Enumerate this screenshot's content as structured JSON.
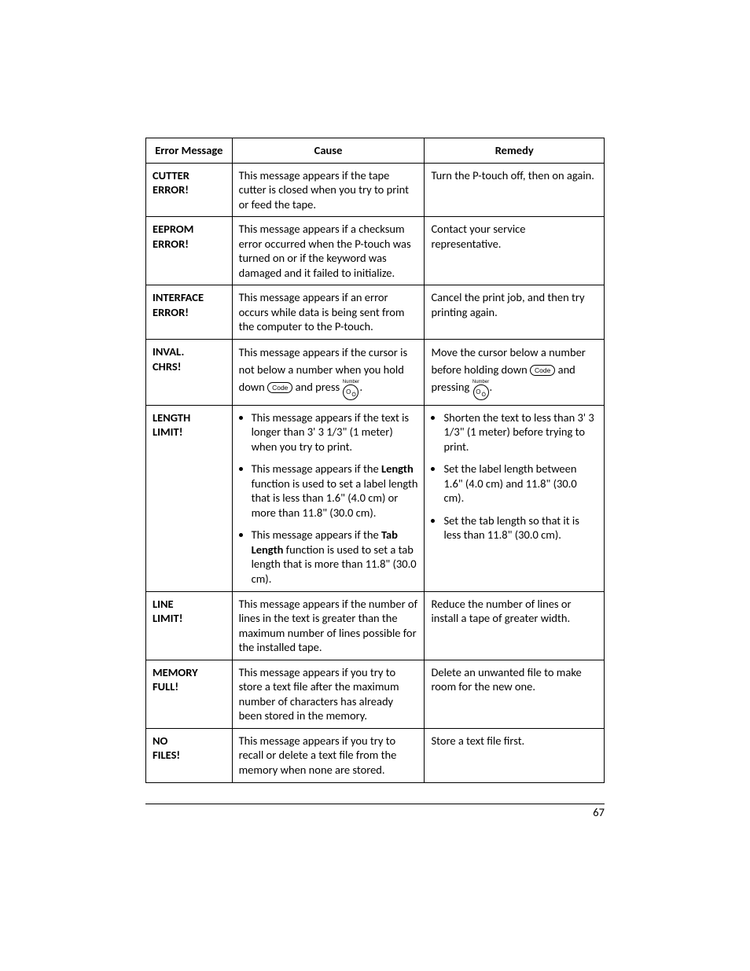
{
  "table": {
    "headers": {
      "error_message": "Error Message",
      "cause": "Cause",
      "remedy": "Remedy"
    },
    "rows": [
      {
        "error1": "CUTTER",
        "error2": "ERROR!",
        "cause": "This message appears if the tape cutter is closed when you try to print or feed the tape.",
        "remedy": "Turn the P-touch off, then on again."
      },
      {
        "error1": "EEPROM",
        "error2": "ERROR!",
        "cause": "This message appears if a checksum error occurred when the P-touch was turned on or if the keyword was damaged and it failed to initialize.",
        "remedy": "Contact your service representative."
      },
      {
        "error1": "INTERFACE",
        "error2": "ERROR!",
        "cause": "This message appears if an error occurs while data is being sent from the computer to the P-touch.",
        "remedy": "Cancel the print job, and then try printing again."
      },
      {
        "error1": "INVAL.",
        "error2": "CHRS!",
        "cause_pre": "This message appears if the cursor is not below a number when you hold down ",
        "cause_mid": " and press ",
        "remedy_pre": "Move the cursor below a number before holding down ",
        "remedy_mid": " and pressing ",
        "period": "."
      },
      {
        "error1": "LENGTH",
        "error2": "LIMIT!",
        "cause_li1": "This message appears if the text is longer than 3' 3 1/3\" (1 meter) when you try to print.",
        "cause_li2_a": "This message appears if the ",
        "cause_li2_bold": "Length",
        "cause_li2_b": " function is used to set a label length that is less than 1.6\" (4.0 cm) or more than 11.8\" (30.0 cm).",
        "cause_li3_a": "This message appears if the ",
        "cause_li3_bold": "Tab Length",
        "cause_li3_b": " function is used to set a tab length that is more than 11.8\" (30.0 cm).",
        "remedy_li1": "Shorten the text to less than 3' 3 1/3\" (1 meter) before trying to print.",
        "remedy_li2": "Set the label length between 1.6\" (4.0 cm) and 11.8\" (30.0 cm).",
        "remedy_li3": "Set the tab length so that it is less than 11.8\" (30.0 cm)."
      },
      {
        "error1": "LINE",
        "error2": "LIMIT!",
        "cause": "This message appears if the number of lines in the text is greater than the maximum number of lines possible for the installed tape.",
        "remedy": "Reduce the number of lines or install a tape of greater width."
      },
      {
        "error1": "MEMORY",
        "error2": "FULL!",
        "cause": "This message appears if you try to store a text file after the maximum number of characters has already been stored in the memory.",
        "remedy": "Delete an unwanted file to make room for the new one."
      },
      {
        "error1": "NO",
        "error2": "FILES!",
        "cause": "This message appears if you try to recall or delete a text file from the memory when none are stored.",
        "remedy": "Store a text file first."
      }
    ]
  },
  "keys": {
    "code_label": "Code",
    "num_super": "Number",
    "num_main": "O",
    "num_sub": "Ó"
  },
  "page_number": "67"
}
